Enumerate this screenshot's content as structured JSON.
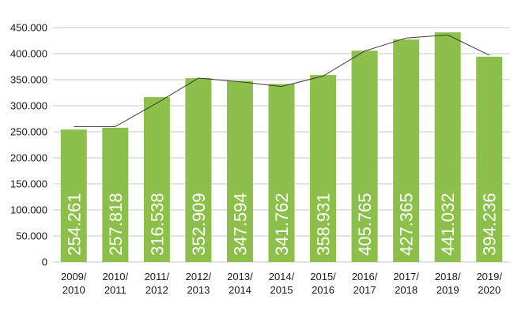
{
  "chart_data": {
    "type": "bar",
    "categories": [
      [
        "2009/",
        "2010"
      ],
      [
        "2010/",
        "2011"
      ],
      [
        "2011/",
        "2012"
      ],
      [
        "2012/",
        "2013"
      ],
      [
        "2013/",
        "2014"
      ],
      [
        "2014/",
        "2015"
      ],
      [
        "2015/",
        "2016"
      ],
      [
        "2016/",
        "2017"
      ],
      [
        "2017/",
        "2018"
      ],
      [
        "2018/",
        "2019"
      ],
      [
        "2019/",
        "2020"
      ]
    ],
    "values": [
      254261,
      257818,
      316538,
      352909,
      347594,
      341762,
      358931,
      405765,
      427365,
      441032,
      394236
    ],
    "data_labels": [
      "254.261",
      "257.818",
      "316.538",
      "352.909",
      "347.594",
      "341.762",
      "358.931",
      "405.765",
      "427.365",
      "441.032",
      "394.236"
    ],
    "line_values": [
      260000,
      260000,
      305000,
      353000,
      346000,
      337000,
      357000,
      405000,
      430000,
      436000,
      397000
    ],
    "yticks": [
      {
        "value": 0,
        "label": "0"
      },
      {
        "value": 50000,
        "label": "50.000"
      },
      {
        "value": 100000,
        "label": "100.000"
      },
      {
        "value": 150000,
        "label": "150.000"
      },
      {
        "value": 200000,
        "label": "200.000"
      },
      {
        "value": 250000,
        "label": "250.000"
      },
      {
        "value": 300000,
        "label": "300.000"
      },
      {
        "value": 350000,
        "label": "350.000"
      },
      {
        "value": 400000,
        "label": "400.000"
      },
      {
        "value": 450000,
        "label": "450.000"
      }
    ],
    "ylim": [
      0,
      450000
    ],
    "grid": true,
    "colors": {
      "bar": "#8dc04a",
      "line": "#3a3a3a",
      "grid": "#c8c8c8",
      "label": "#ffffff"
    }
  }
}
